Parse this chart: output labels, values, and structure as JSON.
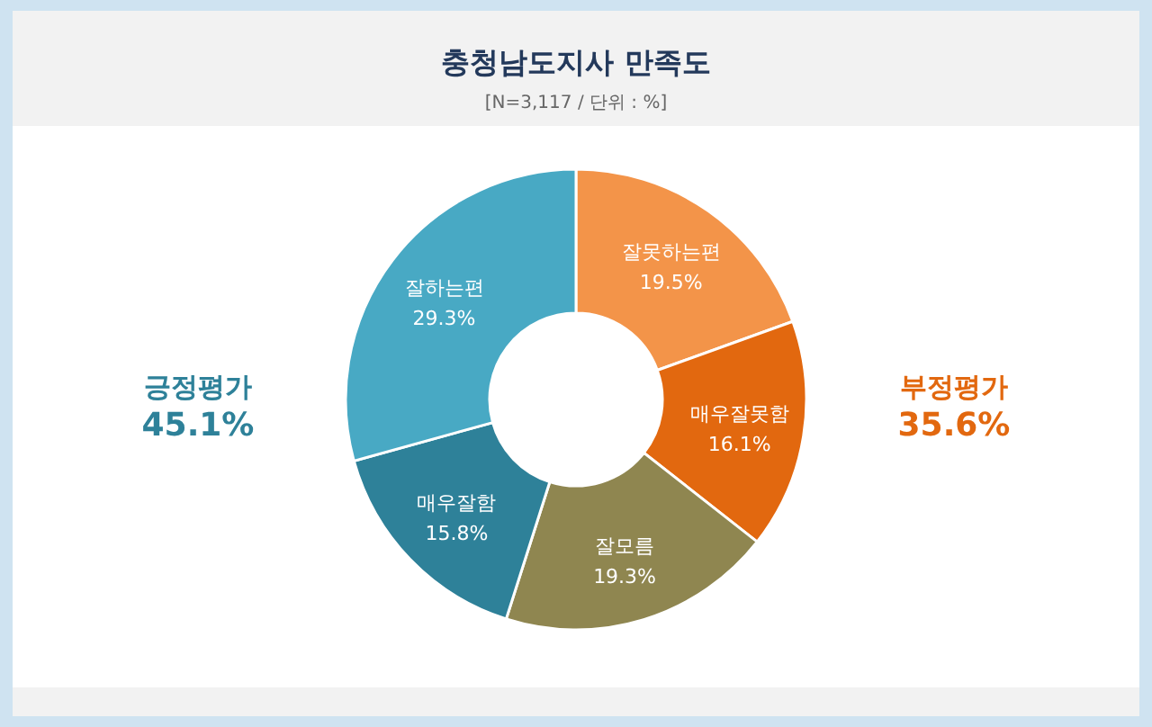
{
  "chart_data": {
    "type": "donut",
    "title": "충청남도지사 만족도",
    "subtitle": "[N=3,117 / 단위 : %]",
    "categories": [
      "잘못하는편",
      "매우잘못함",
      "잘모름",
      "매우잘함",
      "잘하는편"
    ],
    "values": [
      19.5,
      16.1,
      19.3,
      15.8,
      29.3
    ],
    "colors": [
      "#f39449",
      "#e2680f",
      "#8f8650",
      "#2e8199",
      "#48a9c4"
    ],
    "value_labels": [
      "19.5%",
      "16.1%",
      "19.3%",
      "15.8%",
      "29.3%"
    ],
    "annotations": [
      "긍정평가\n45.1%",
      "부정평가\n35.6%"
    ]
  }
}
